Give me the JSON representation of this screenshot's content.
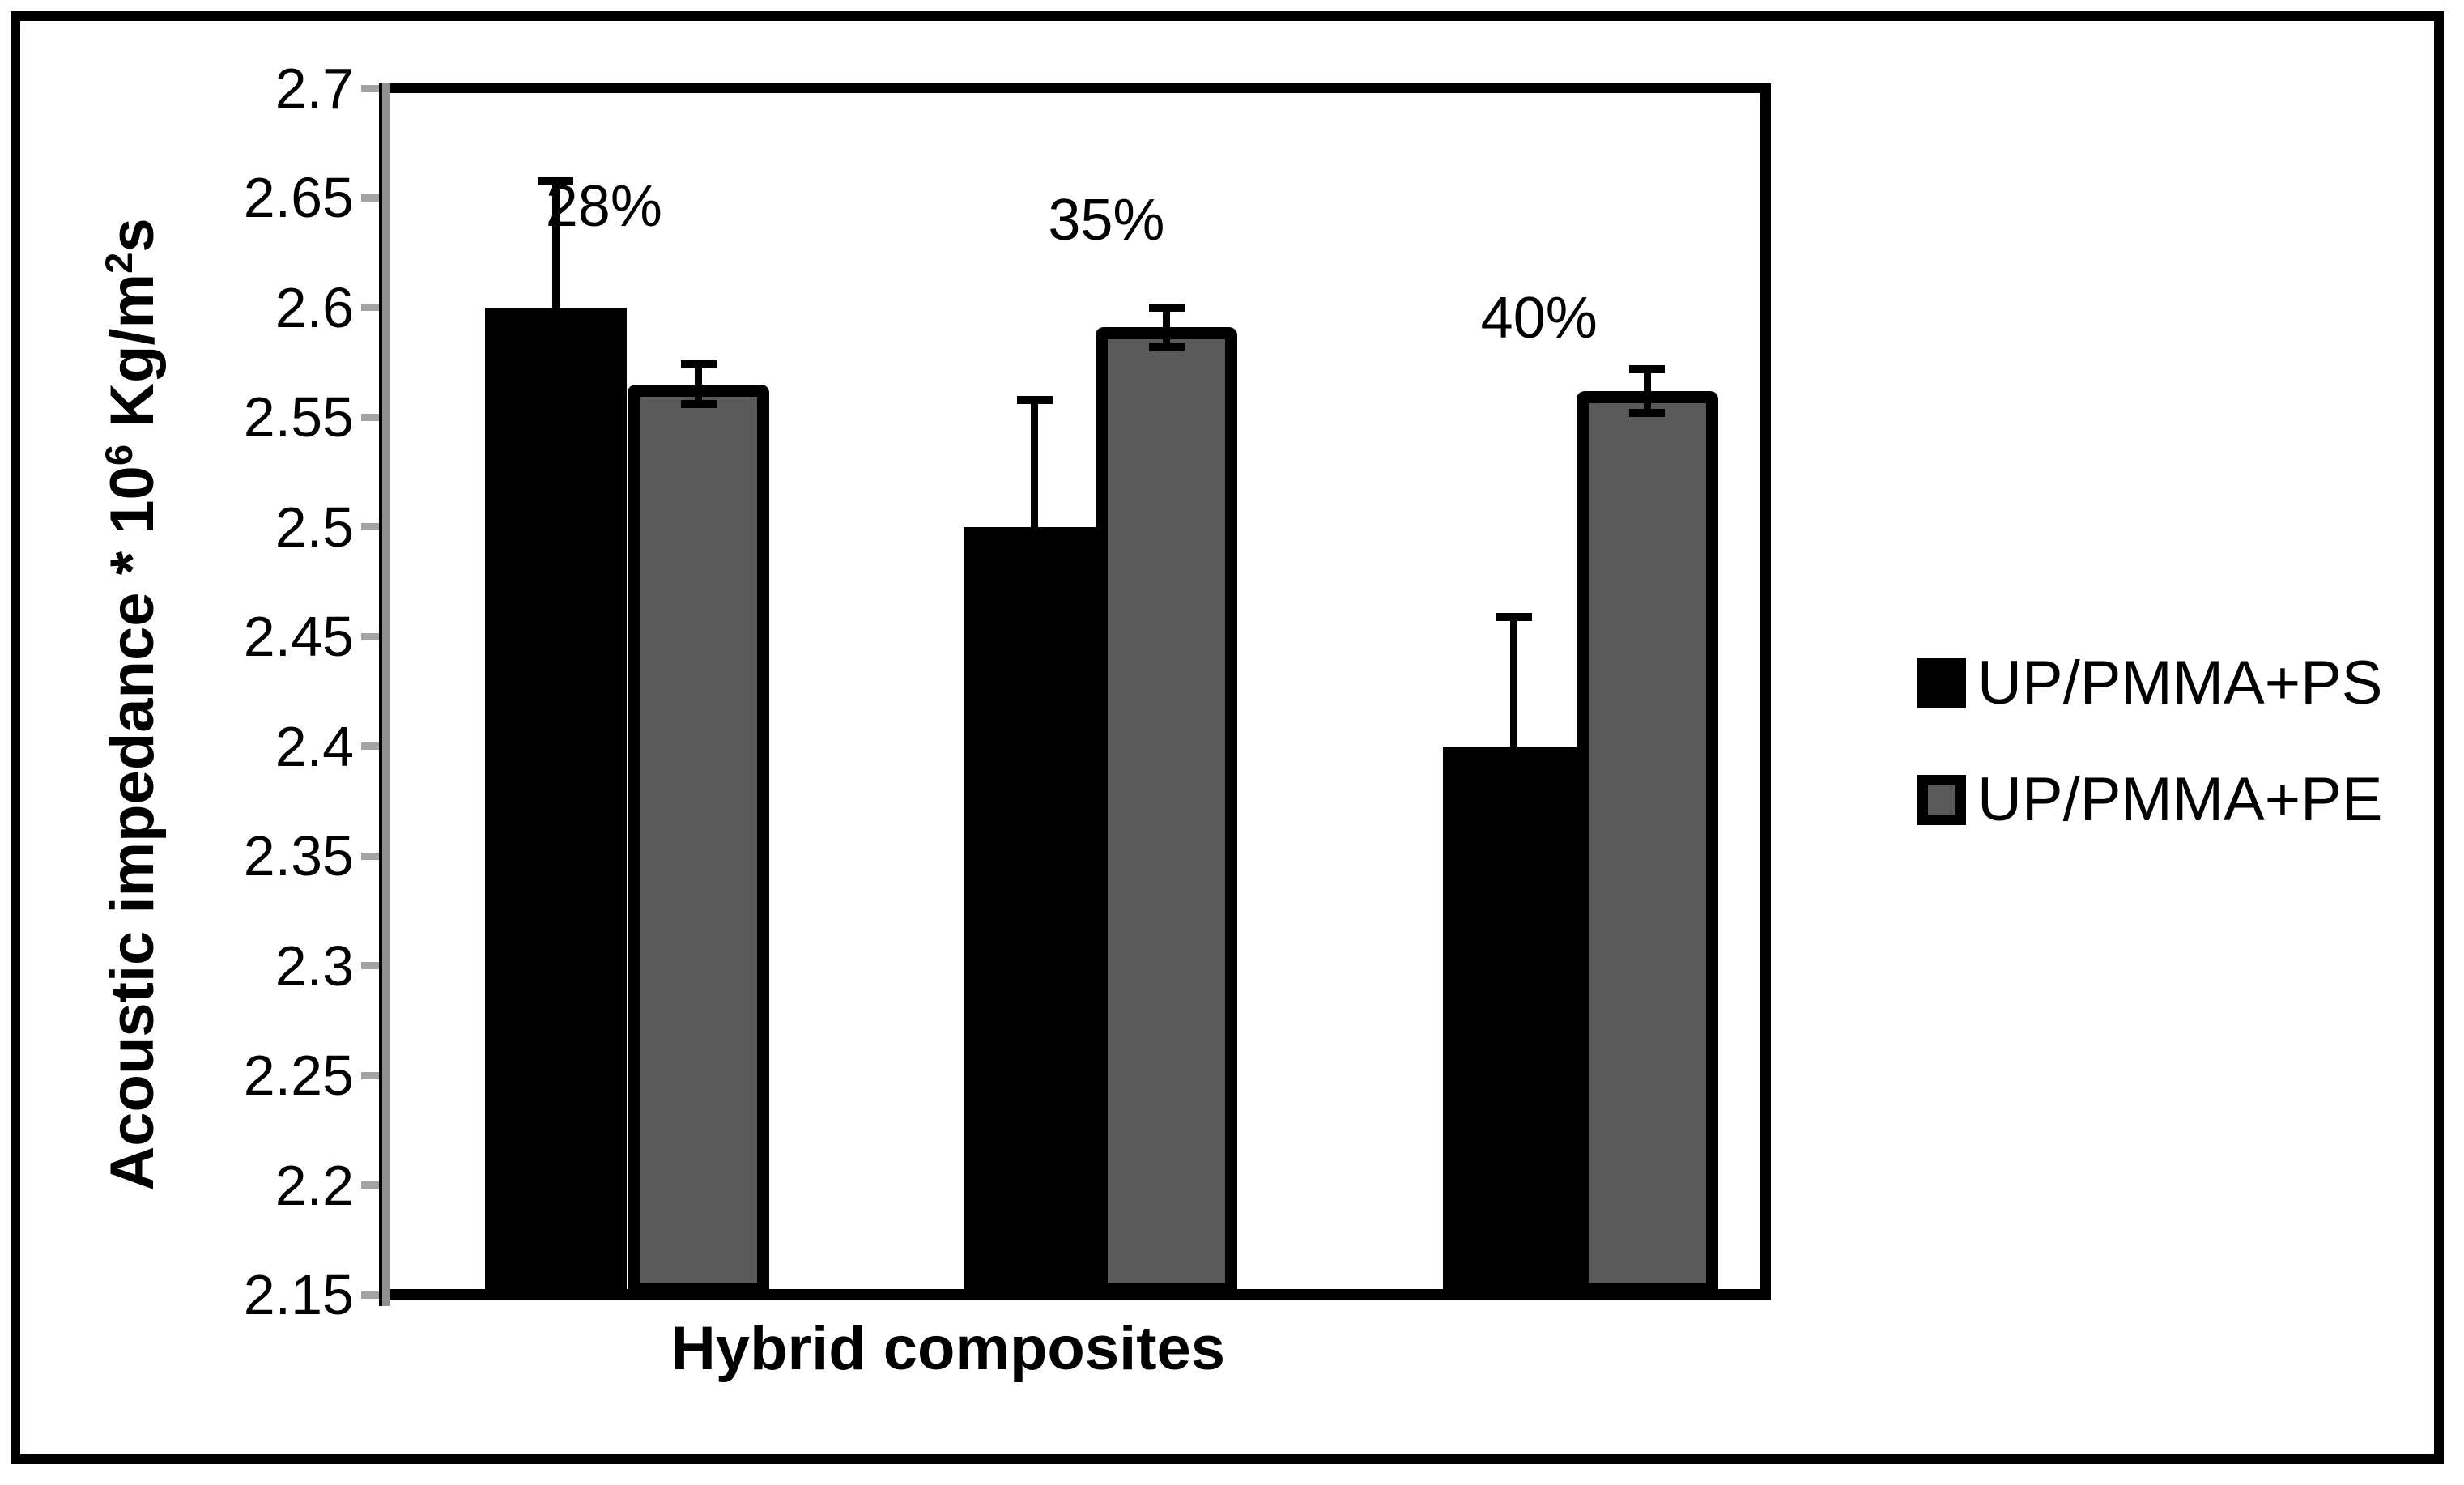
{
  "chart_data": {
    "type": "bar",
    "title": "",
    "xlabel": "Hybrid composites",
    "ylabel": "Acoustic impedance * 10⁶ Kg/m²s",
    "ylabel_parts": {
      "pre": "Acoustic impedance * 10",
      "sup1": "6",
      "mid": " Kg/m",
      "sup2": "2",
      "post": "s"
    },
    "categories": [
      "28%",
      "35%",
      "40%"
    ],
    "series": [
      {
        "name": "UP/PMMA+PS",
        "color": "#000000",
        "values": [
          2.6,
          2.5,
          2.4
        ],
        "error_up": [
          0.058,
          0.058,
          0.059
        ],
        "error_down": [
          0,
          0,
          0
        ]
      },
      {
        "name": "UP/PMMA+PE",
        "color": "#595959",
        "border_color": "#000000",
        "values": [
          2.565,
          2.591,
          2.562
        ],
        "error_up": [
          0.009,
          0.009,
          0.01
        ],
        "error_down": [
          0.009,
          0.009,
          0.01
        ]
      }
    ],
    "ylim": [
      2.15,
      2.7
    ],
    "ytick_step": 0.05,
    "yticks": [
      "2.15",
      "2.2",
      "2.25",
      "2.3",
      "2.35",
      "2.4",
      "2.45",
      "2.5",
      "2.55",
      "2.6",
      "2.65",
      "2.7"
    ],
    "grid": false,
    "legend_position": "right",
    "annotation_labels": [
      "28%",
      "35%",
      "40%"
    ]
  },
  "colors": {
    "frame": "#000000",
    "axis_gray": "#909090",
    "tick_gray": "#a3a3a3",
    "background": "#ffffff"
  }
}
